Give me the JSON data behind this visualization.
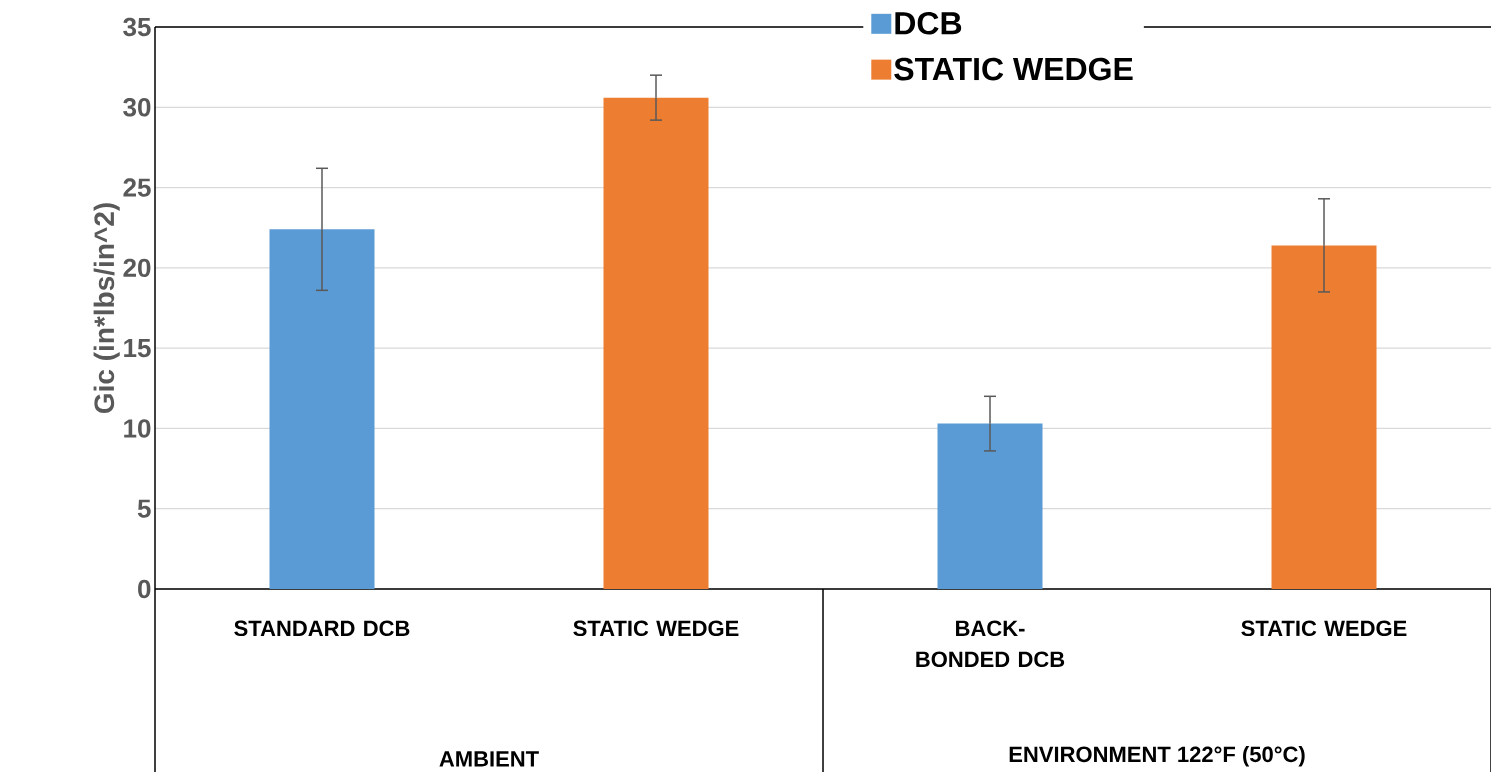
{
  "chart_data": {
    "type": "bar",
    "ylabel": "Gic (in*lbs/in^2)",
    "categories": [
      "STANDARD DCB",
      "STATIC WEDGE",
      "BACK-BONDED DCB",
      "STATIC WEDGE"
    ],
    "series": [
      {
        "name": "DCB",
        "color": "#5b9bd5",
        "values": [
          22.4,
          null,
          10.3,
          null
        ],
        "errors": [
          3.8,
          null,
          1.7,
          null
        ]
      },
      {
        "name": "STATIC WEDGE",
        "color": "#ed7d31",
        "values": [
          null,
          30.6,
          null,
          21.4
        ],
        "errors": [
          null,
          1.4,
          null,
          2.9
        ]
      }
    ],
    "annotations": [
      "AMBIENT",
      "ENVIRONMENT 122°F (50°C)"
    ],
    "ylim": [
      0,
      35
    ],
    "yticks": [
      0,
      5,
      10,
      15,
      20,
      25,
      30,
      35
    ],
    "grid": "y",
    "legend": "top right"
  }
}
